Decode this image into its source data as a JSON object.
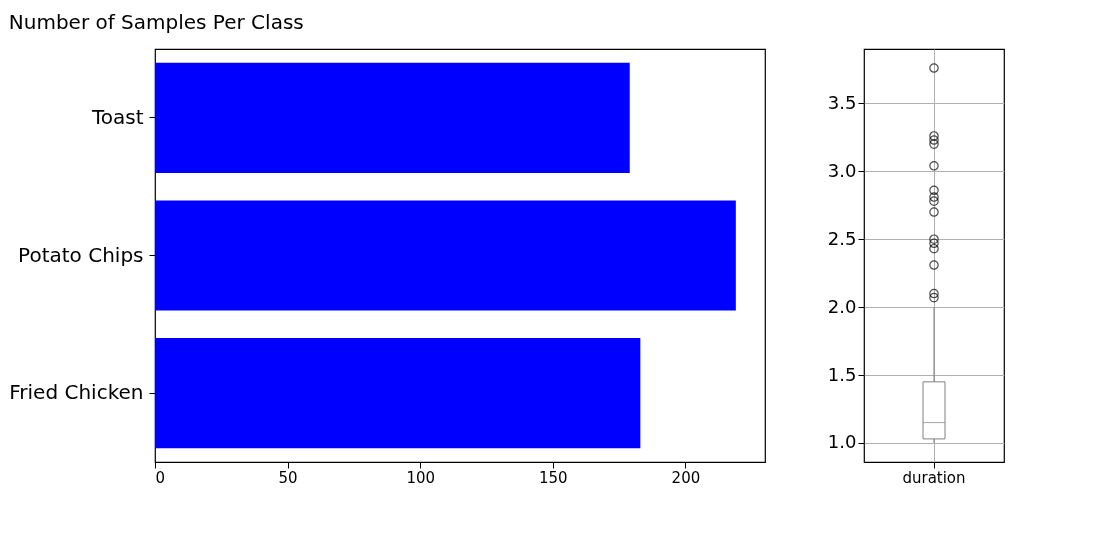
{
  "chart_data": [
    {
      "type": "bar",
      "title": "Number of Samples Per Class",
      "orientation": "horizontal",
      "categories": [
        "Toast",
        "Potato Chips",
        "Fried Chicken"
      ],
      "values": [
        179,
        219,
        183
      ],
      "color": "#0000ff",
      "xlim": [
        0,
        230
      ],
      "xticks": [
        0,
        50,
        100,
        150,
        200
      ],
      "grid": false
    },
    {
      "type": "box",
      "categories": [
        "duration"
      ],
      "marker": "circle",
      "grid": true,
      "ylim": [
        0.86,
        3.9
      ],
      "yticks": [
        {
          "value": 1,
          "label": "1.0"
        },
        {
          "value": 1.5,
          "label": "1.5"
        },
        {
          "value": 2,
          "label": "2.0"
        },
        {
          "value": 2.5,
          "label": "2.5"
        },
        {
          "value": 3,
          "label": "3.0"
        },
        {
          "value": 3.5,
          "label": "3.5"
        }
      ],
      "boxes": [
        {
          "low": 1.0,
          "q1": 1.03,
          "median": 1.15,
          "q3": 1.45,
          "high": 2.0,
          "outliers": [
            3.76,
            3.26,
            3.23,
            3.2,
            3.04,
            2.86,
            2.81,
            2.78,
            2.7,
            2.5,
            2.47,
            2.43,
            2.31,
            2.1,
            2.07
          ]
        }
      ]
    }
  ]
}
